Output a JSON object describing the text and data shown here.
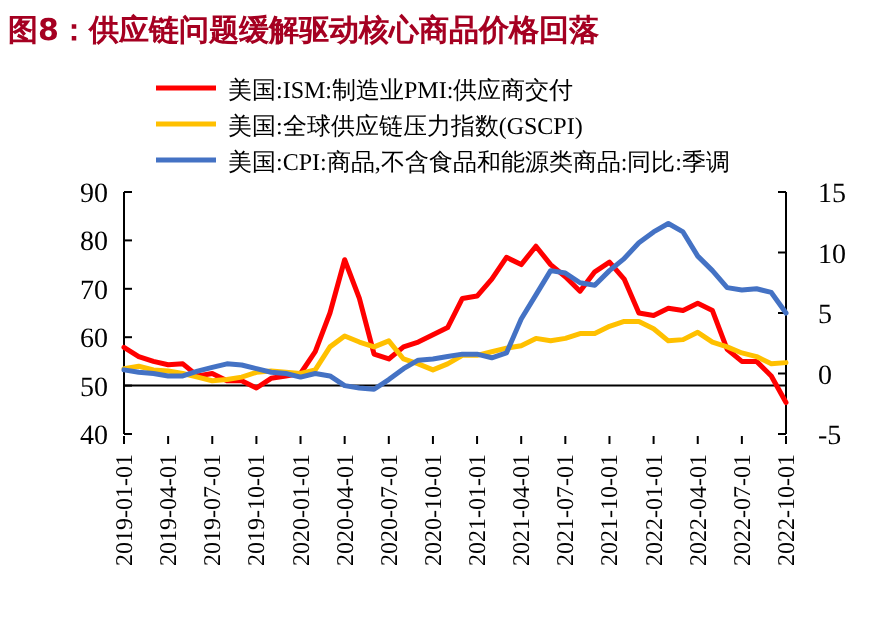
{
  "chart_data": {
    "type": "line",
    "title": "图8：供应链问题缓解驱动核心商品价格回落",
    "x": [
      "2019-01",
      "2019-02",
      "2019-03",
      "2019-04",
      "2019-05",
      "2019-06",
      "2019-07",
      "2019-08",
      "2019-09",
      "2019-10",
      "2019-11",
      "2019-12",
      "2020-01",
      "2020-02",
      "2020-03",
      "2020-04",
      "2020-05",
      "2020-06",
      "2020-07",
      "2020-08",
      "2020-09",
      "2020-10",
      "2020-11",
      "2020-12",
      "2021-01",
      "2021-02",
      "2021-03",
      "2021-04",
      "2021-05",
      "2021-06",
      "2021-07",
      "2021-08",
      "2021-09",
      "2021-10",
      "2021-11",
      "2021-12",
      "2022-01",
      "2022-02",
      "2022-03",
      "2022-04",
      "2022-05",
      "2022-06",
      "2022-07",
      "2022-08",
      "2022-09",
      "2022-10"
    ],
    "series": [
      {
        "name": "美国:ISM:制造业PMI:供应商交付",
        "color": "#ff0000",
        "values": [
          57.9,
          56,
          55,
          54.3,
          54.5,
          52,
          52.5,
          51,
          51,
          49.5,
          51.5,
          52,
          52.5,
          57,
          65,
          76,
          68,
          56.5,
          55.5,
          58,
          59,
          60.5,
          62,
          68,
          68.5,
          72,
          76.5,
          75,
          78.8,
          75,
          72.5,
          69.5,
          73.5,
          75.5,
          72,
          65,
          64.5,
          66,
          65.5,
          67,
          65.5,
          57.5,
          55,
          55,
          52,
          46.5
        ]
      },
      {
        "name": "美国:全球供应链压力指数(GSCPI)",
        "color": "#ffc000",
        "axis": "y2",
        "values": [
          0.4,
          0.6,
          0.3,
          0.2,
          0,
          -0.3,
          -0.6,
          -0.5,
          -0.3,
          0.1,
          0.2,
          0.1,
          0,
          0.3,
          2.2,
          3.1,
          2.6,
          2.2,
          2.7,
          1.2,
          0.8,
          0.3,
          0.8,
          1.5,
          1.5,
          1.8,
          2.1,
          2.3,
          2.9,
          2.7,
          2.9,
          3.3,
          3.3,
          3.9,
          4.3,
          4.3,
          3.7,
          2.7,
          2.8,
          3.4,
          2.6,
          2.2,
          1.7,
          1.4,
          0.8,
          0.9
        ]
      },
      {
        "name": "美国:CPI:商品,不含食品和能源类商品:同比:季调",
        "color": "#4472c4",
        "axis": "y2",
        "values": [
          0.3,
          0.1,
          0,
          -0.2,
          -0.2,
          0.2,
          0.5,
          0.8,
          0.7,
          0.4,
          0.1,
          0,
          -0.3,
          0,
          -0.2,
          -1.0,
          -1.2,
          -1.3,
          -0.5,
          0.4,
          1.1,
          1.2,
          1.4,
          1.6,
          1.6,
          1.3,
          1.7,
          4.5,
          6.5,
          8.5,
          8.3,
          7.5,
          7.3,
          8.5,
          9.5,
          10.8,
          11.7,
          12.4,
          11.7,
          9.7,
          8.5,
          7.1,
          6.9,
          7.0,
          6.7,
          5.0
        ]
      }
    ],
    "xlim": [
      "2019-01",
      "2022-10"
    ],
    "xticks": [
      {
        "value": "2019-01",
        "label": "2019-01-01"
      },
      {
        "value": "2019-04",
        "label": "2019-04-01"
      },
      {
        "value": "2019-07",
        "label": "2019-07-01"
      },
      {
        "value": "2019-10",
        "label": "2019-10-01"
      },
      {
        "value": "2020-01",
        "label": "2020-01-01"
      },
      {
        "value": "2020-04",
        "label": "2020-04-01"
      },
      {
        "value": "2020-07",
        "label": "2020-07-01"
      },
      {
        "value": "2020-10",
        "label": "2020-10-01"
      },
      {
        "value": "2021-01",
        "label": "2021-01-01"
      },
      {
        "value": "2021-04",
        "label": "2021-04-01"
      },
      {
        "value": "2021-07",
        "label": "2021-07-01"
      },
      {
        "value": "2021-10",
        "label": "2021-10-01"
      },
      {
        "value": "2022-01",
        "label": "2022-01-01"
      },
      {
        "value": "2022-04",
        "label": "2022-04-01"
      },
      {
        "value": "2022-07",
        "label": "2022-07-01"
      },
      {
        "value": "2022-10",
        "label": "2022-10-01"
      }
    ],
    "ylim": [
      40,
      90
    ],
    "yticks": [
      40,
      50,
      60,
      70,
      80,
      90
    ],
    "y2lim": [
      -5,
      15
    ],
    "y2ticks": [
      {
        "value": -5,
        "label": "-5"
      },
      0,
      5,
      10,
      15
    ],
    "ref_lines": [
      {
        "axis": "y",
        "value": 50,
        "color": "#000000"
      }
    ],
    "legend": "top left",
    "grid": false,
    "marker": "none",
    "line_style": "solid"
  }
}
